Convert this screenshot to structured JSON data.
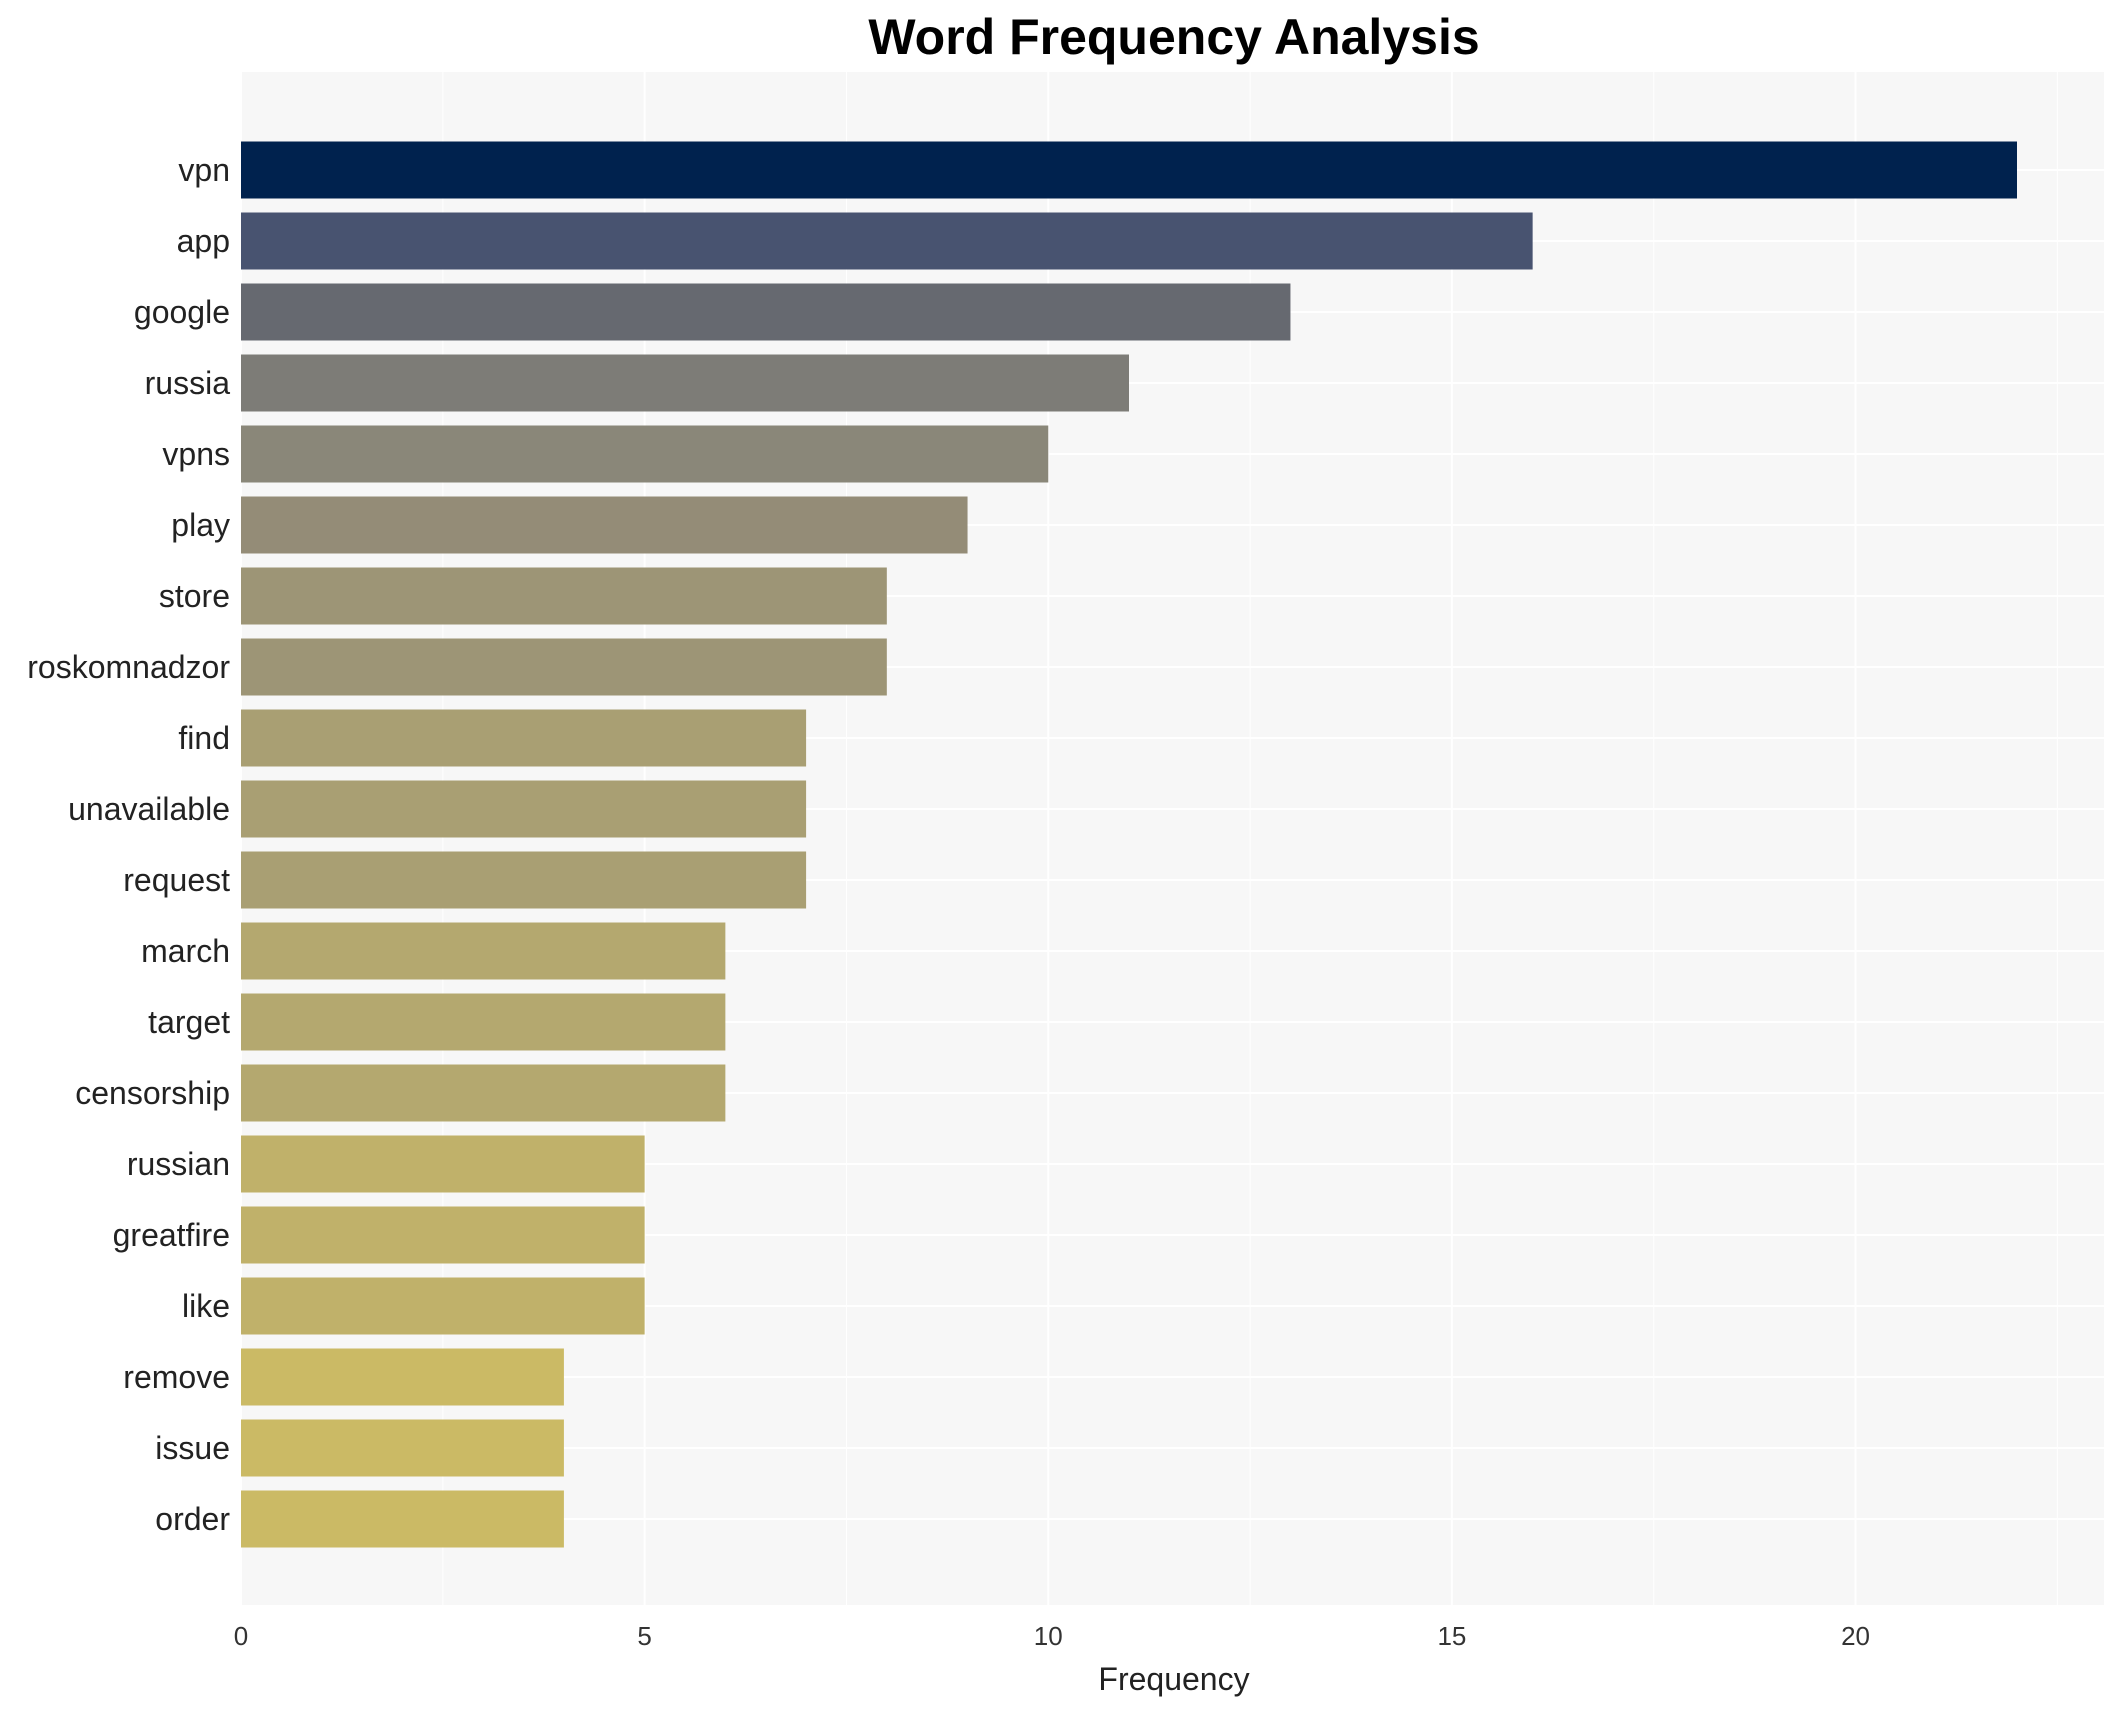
{
  "chart_data": {
    "type": "bar",
    "orientation": "horizontal",
    "title": "Word Frequency Analysis",
    "xlabel": "Frequency",
    "ylabel": "",
    "xlim": [
      0,
      23
    ],
    "xticks": [
      0,
      5,
      10,
      15,
      20
    ],
    "grid": true,
    "categories": [
      "vpn",
      "app",
      "google",
      "russia",
      "vpns",
      "play",
      "store",
      "roskomnadzor",
      "find",
      "unavailable",
      "request",
      "march",
      "target",
      "censorship",
      "russian",
      "greatfire",
      "like",
      "remove",
      "issue",
      "order"
    ],
    "values": [
      22,
      16,
      13,
      11,
      10,
      9,
      8,
      8,
      7,
      7,
      7,
      6,
      6,
      6,
      5,
      5,
      5,
      4,
      4,
      4
    ],
    "colors": [
      "#00224e",
      "#485370",
      "#666970",
      "#7d7c77",
      "#8a8779",
      "#948c77",
      "#9d9576",
      "#9d9576",
      "#a99f73",
      "#a99f73",
      "#a99f73",
      "#b4a86f",
      "#b4a86f",
      "#b4a86f",
      "#c0b16a",
      "#c0b16a",
      "#c0b16a",
      "#cbba65",
      "#cbba65",
      "#cbba65"
    ]
  }
}
